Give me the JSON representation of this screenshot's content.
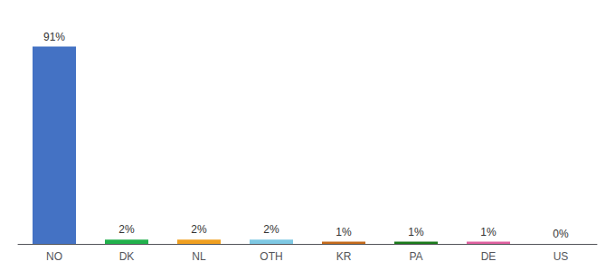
{
  "chart_data": {
    "type": "bar",
    "categories": [
      "NO",
      "DK",
      "NL",
      "OTH",
      "KR",
      "PA",
      "DE",
      "US"
    ],
    "values": [
      91,
      2,
      2,
      2,
      1,
      1,
      1,
      0
    ],
    "value_labels": [
      "91%",
      "2%",
      "2%",
      "2%",
      "1%",
      "1%",
      "1%",
      "0%"
    ],
    "colors": [
      "#4472c4",
      "#22b14c",
      "#f0a020",
      "#7ec8e3",
      "#c46a1a",
      "#1a7a1a",
      "#e060a0",
      "#888888"
    ],
    "ylim": [
      0,
      100
    ],
    "grid": false,
    "data_labels": true,
    "tick_labels": "x"
  }
}
